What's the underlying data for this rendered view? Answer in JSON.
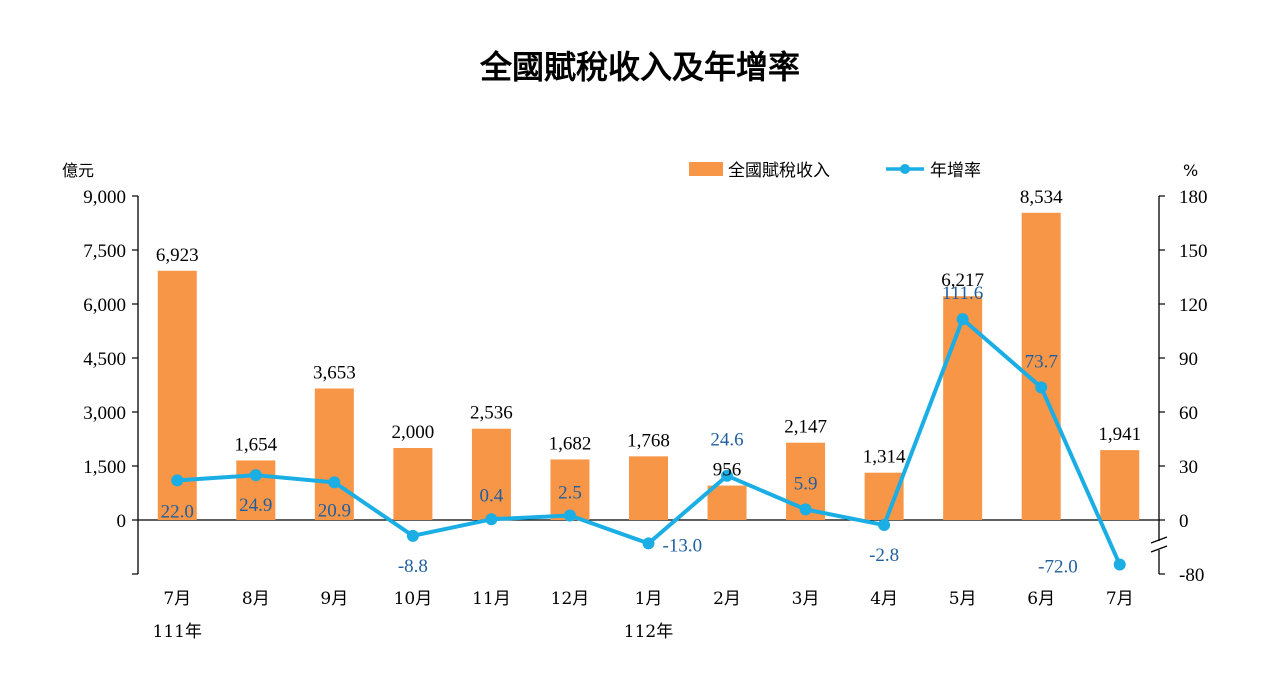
{
  "chart_data": {
    "type": "bar",
    "title": "全國賦稅收入及年增率",
    "left_axis_unit": "億元",
    "right_axis_unit": "%",
    "categories": [
      "7月",
      "8月",
      "9月",
      "10月",
      "11月",
      "12月",
      "1月",
      "2月",
      "3月",
      "4月",
      "5月",
      "6月",
      "7月"
    ],
    "year_labels": [
      {
        "category_index": 0,
        "label": "111年"
      },
      {
        "category_index": 6,
        "label": "112年"
      }
    ],
    "left_axis": {
      "ylim": [
        0,
        9000
      ],
      "ticks": [
        "0",
        "1,500",
        "3,000",
        "4,500",
        "6,000",
        "7,500",
        "9,000"
      ],
      "tick_values": [
        0,
        1500,
        3000,
        4500,
        6000,
        7500,
        9000
      ]
    },
    "right_axis": {
      "ylim": [
        0,
        180
      ],
      "ticks": [
        "0",
        "30",
        "60",
        "90",
        "120",
        "150",
        "180"
      ],
      "tick_values": [
        0,
        30,
        60,
        90,
        120,
        150,
        180
      ],
      "broken_tick": "-80",
      "broken_value": -80
    },
    "series": [
      {
        "name": "全國賦稅收入",
        "type": "bar",
        "axis": "left",
        "color": "#f79646",
        "values": [
          6923,
          1654,
          3653,
          2000,
          2536,
          1682,
          1768,
          956,
          2147,
          1314,
          6217,
          8534,
          1941
        ],
        "labels": [
          "6,923",
          "1,654",
          "3,653",
          "2,000",
          "2,536",
          "1,682",
          "1,768",
          "956",
          "2,147",
          "1,314",
          "6,217",
          "8,534",
          "1,941"
        ]
      },
      {
        "name": "年增率",
        "type": "line",
        "axis": "right",
        "color": "#1aaee5",
        "values": [
          22.0,
          24.9,
          20.9,
          -8.8,
          0.4,
          2.5,
          -13.0,
          24.6,
          5.9,
          -2.8,
          111.6,
          73.7,
          -72.0
        ],
        "labels": [
          "22.0",
          "24.9",
          "20.9",
          "-8.8",
          "0.4",
          "2.5",
          "-13.0",
          "24.6",
          "5.9",
          "-2.8",
          "111.6",
          "73.7",
          "-72.0"
        ]
      }
    ],
    "legend_position": "top-right",
    "grid": false
  }
}
